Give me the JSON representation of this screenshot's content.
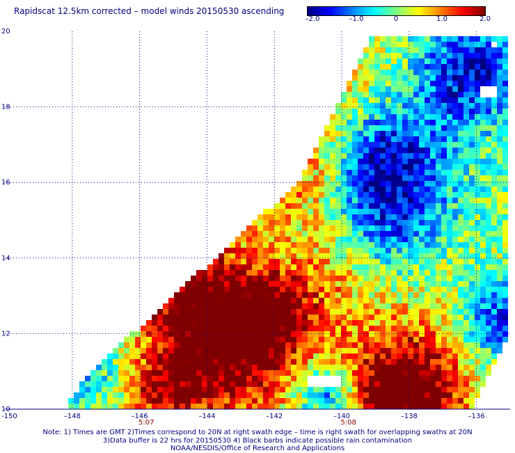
{
  "title": "Rapidscat 12.5km corrected – model winds 20150530 ascending",
  "colorbar": {
    "labels": [
      "–2.0",
      "–1.0",
      "0",
      "1.0",
      "2.0"
    ],
    "values": [
      -2.0,
      -1.0,
      0,
      1.0,
      2.0
    ],
    "colors": [
      "#00007f",
      "#0000ff",
      "#007fff",
      "#00ffff",
      "#7fff7f",
      "#ffff00",
      "#ff7f00",
      "#ff0000",
      "#7f0000"
    ]
  },
  "map": {
    "lon_range": [
      -150,
      -135
    ],
    "lat_range": [
      10,
      20
    ],
    "lon_ticks": [
      {
        "value": -150,
        "label": "-150"
      },
      {
        "value": -148,
        "label": "–148"
      },
      {
        "value": -146,
        "label": "–146"
      },
      {
        "value": -144,
        "label": "–144"
      },
      {
        "value": -142,
        "label": "–142"
      },
      {
        "value": -140,
        "label": "–140"
      },
      {
        "value": -138,
        "label": "–138"
      },
      {
        "value": -136,
        "label": "–136"
      }
    ],
    "lat_ticks": [
      {
        "value": 10,
        "label": "10"
      },
      {
        "value": 12,
        "label": "12"
      },
      {
        "value": 14,
        "label": "14"
      },
      {
        "value": 16,
        "label": "16"
      },
      {
        "value": 18,
        "label": "18"
      },
      {
        "value": 20,
        "label": "20"
      }
    ],
    "swath_times": [
      {
        "lon": -145.8,
        "label": "5:07"
      },
      {
        "lon": -139.8,
        "label": "5:08"
      }
    ],
    "grid_style": "dotted"
  },
  "notes": [
    "Note: 1) Times are GMT 2)Times correspond to 20N at right swath edge – time is right swath for overlapping swaths at 20N",
    "3)Data buffer is 22 hrs for 20150530 4) Black barbs indicate possible rain contamination",
    "NOAA/NESDIS/Office of Research and Applications"
  ]
}
